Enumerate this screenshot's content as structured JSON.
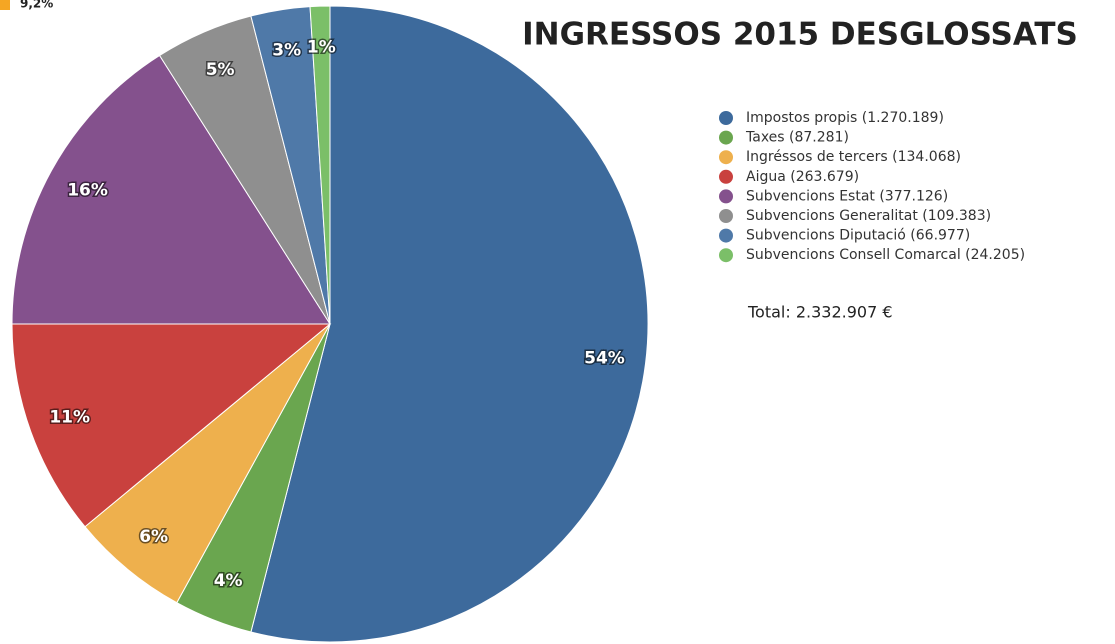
{
  "chart_data": {
    "type": "pie",
    "title": "INGRESSOS 2015 DESGLOSSATS",
    "categories": [
      "Impostos propis (1.270.189)",
      "Taxes (87.281)",
      "Ingréssos de tercers (134.068)",
      "Aigua (263.679)",
      "Subvencions Estat (377.126)",
      "Subvencions Generalitat (109.383)",
      "Subvencions Diputació (66.977)",
      "Subvencions Consell Comarcal (24.205)"
    ],
    "values": [
      54,
      4,
      6,
      11,
      16,
      5,
      3,
      1
    ],
    "value_labels": [
      "54%",
      "4%",
      "6%",
      "11%",
      "16%",
      "5%",
      "3%",
      "1%"
    ],
    "colors": [
      "#3d6a9c",
      "#6aa64f",
      "#eeb04d",
      "#c9413e",
      "#84518d",
      "#8f8f8f",
      "#4f79a8",
      "#7bbf68"
    ],
    "legend": "right",
    "annotations": [
      "Total: 2.332.907 €",
      "9,2%"
    ]
  }
}
